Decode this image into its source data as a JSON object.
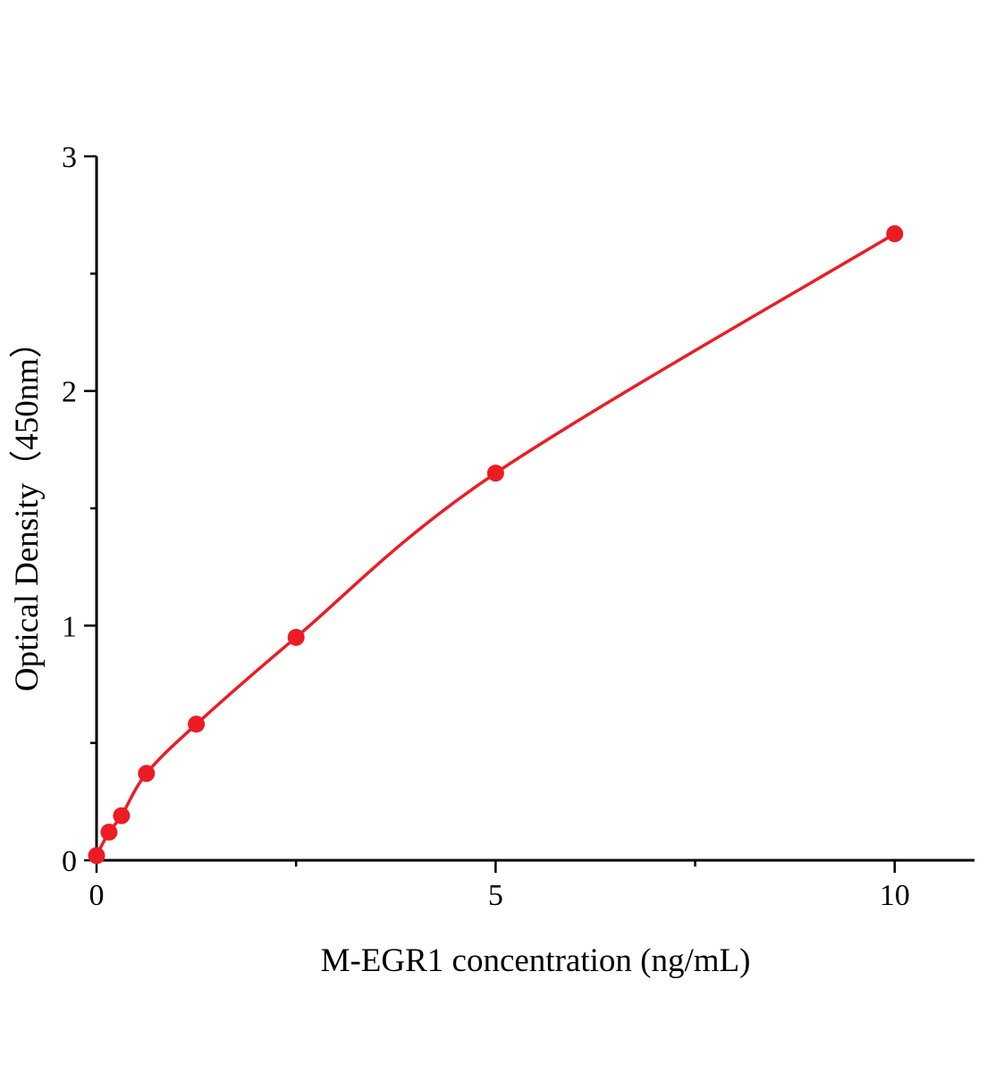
{
  "chart_data": {
    "type": "scatter",
    "title": "",
    "xlabel": "M-EGR1 concentration (ng/mL)",
    "ylabel": "Optical Density（450nm）",
    "x": [
      0,
      0.156,
      0.3125,
      0.625,
      1.25,
      2.5,
      5,
      10
    ],
    "y": [
      0.02,
      0.12,
      0.19,
      0.37,
      0.58,
      0.95,
      1.65,
      2.67
    ],
    "xlim": [
      0,
      11
    ],
    "ylim": [
      0,
      3
    ],
    "x_major_ticks": [
      0,
      5,
      10
    ],
    "x_minor_ticks": [
      2.5,
      7.5
    ],
    "y_major_ticks": [
      0,
      1,
      2,
      3
    ],
    "y_minor_ticks": [
      0.5,
      1.5,
      2.5
    ],
    "x_tick_labels": [
      "0",
      "5",
      "10"
    ],
    "y_tick_labels": [
      "0",
      "1",
      "2",
      "3"
    ],
    "line_color": "#ed1c24",
    "marker_color": "#ed1c24",
    "marker_radius": 9.5,
    "line_width": 3.5,
    "curve_style": "smooth",
    "grid": false,
    "legend": null
  }
}
